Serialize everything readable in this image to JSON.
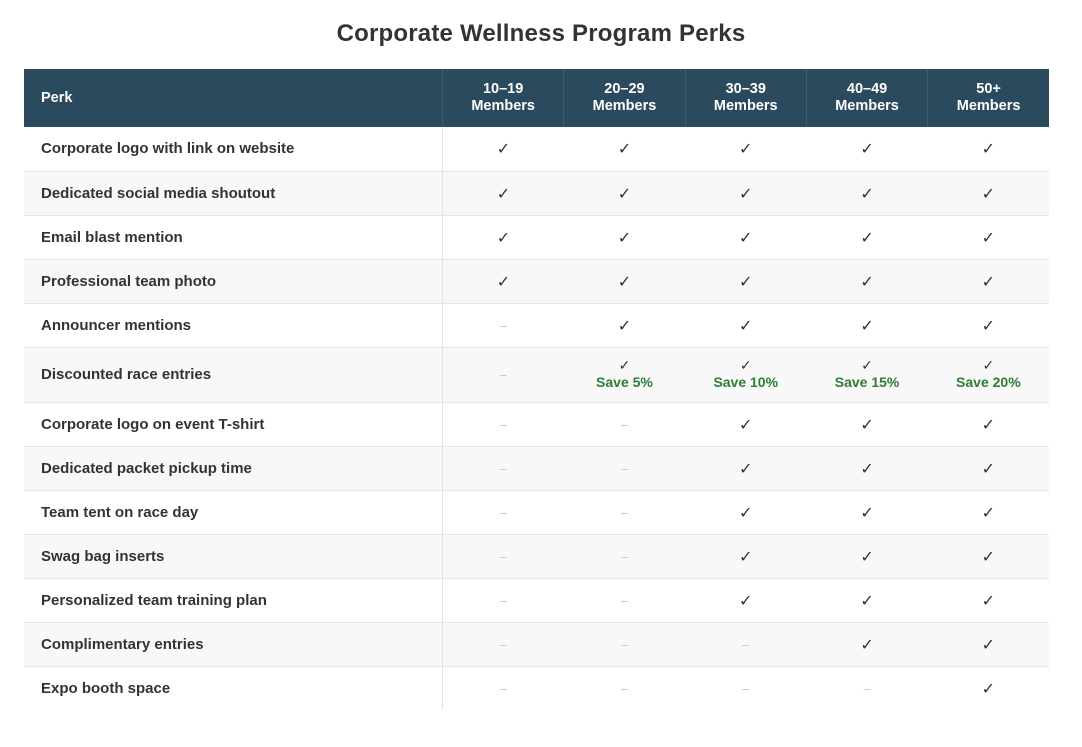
{
  "title": "Corporate Wellness Program Perks",
  "header": {
    "perk_label": "Perk",
    "tiers": [
      {
        "line1": "10–19",
        "line2": "Members"
      },
      {
        "line1": "20–29",
        "line2": "Members"
      },
      {
        "line1": "30–39",
        "line2": "Members"
      },
      {
        "line1": "40–49",
        "line2": "Members"
      },
      {
        "line1": "50+",
        "line2": "Members"
      }
    ]
  },
  "symbols": {
    "check": "✓",
    "dash": "–"
  },
  "colors": {
    "header_bg": "#2b4a5e",
    "save_text": "#2e7d32",
    "dash": "#c8c8c8"
  },
  "rows": [
    {
      "name": "Corporate logo with link on website",
      "cells": [
        {
          "v": "check"
        },
        {
          "v": "check"
        },
        {
          "v": "check"
        },
        {
          "v": "check"
        },
        {
          "v": "check"
        }
      ]
    },
    {
      "name": "Dedicated social media shoutout",
      "cells": [
        {
          "v": "check"
        },
        {
          "v": "check"
        },
        {
          "v": "check"
        },
        {
          "v": "check"
        },
        {
          "v": "check"
        }
      ]
    },
    {
      "name": "Email blast mention",
      "cells": [
        {
          "v": "check"
        },
        {
          "v": "check"
        },
        {
          "v": "check"
        },
        {
          "v": "check"
        },
        {
          "v": "check"
        }
      ]
    },
    {
      "name": "Professional team photo",
      "cells": [
        {
          "v": "check"
        },
        {
          "v": "check"
        },
        {
          "v": "check"
        },
        {
          "v": "check"
        },
        {
          "v": "check"
        }
      ]
    },
    {
      "name": "Announcer mentions",
      "cells": [
        {
          "v": "dash"
        },
        {
          "v": "check"
        },
        {
          "v": "check"
        },
        {
          "v": "check"
        },
        {
          "v": "check"
        }
      ]
    },
    {
      "name": "Discounted race entries",
      "tall": true,
      "cells": [
        {
          "v": "dash"
        },
        {
          "v": "check",
          "note": "Save 5%"
        },
        {
          "v": "check",
          "note": "Save 10%"
        },
        {
          "v": "check",
          "note": "Save 15%"
        },
        {
          "v": "check",
          "note": "Save 20%"
        }
      ]
    },
    {
      "name": "Corporate logo on event T-shirt",
      "cells": [
        {
          "v": "dash"
        },
        {
          "v": "dash"
        },
        {
          "v": "check"
        },
        {
          "v": "check"
        },
        {
          "v": "check"
        }
      ]
    },
    {
      "name": "Dedicated packet pickup time",
      "cells": [
        {
          "v": "dash"
        },
        {
          "v": "dash"
        },
        {
          "v": "check"
        },
        {
          "v": "check"
        },
        {
          "v": "check"
        }
      ]
    },
    {
      "name": "Team tent on race day",
      "cells": [
        {
          "v": "dash"
        },
        {
          "v": "dash"
        },
        {
          "v": "check"
        },
        {
          "v": "check"
        },
        {
          "v": "check"
        }
      ]
    },
    {
      "name": "Swag bag inserts",
      "cells": [
        {
          "v": "dash"
        },
        {
          "v": "dash"
        },
        {
          "v": "check"
        },
        {
          "v": "check"
        },
        {
          "v": "check"
        }
      ]
    },
    {
      "name": "Personalized team training plan",
      "cells": [
        {
          "v": "dash"
        },
        {
          "v": "dash"
        },
        {
          "v": "check"
        },
        {
          "v": "check"
        },
        {
          "v": "check"
        }
      ]
    },
    {
      "name": "Complimentary entries",
      "cells": [
        {
          "v": "dash"
        },
        {
          "v": "dash"
        },
        {
          "v": "dash"
        },
        {
          "v": "check"
        },
        {
          "v": "check"
        }
      ]
    },
    {
      "name": "Expo booth space",
      "cells": [
        {
          "v": "dash"
        },
        {
          "v": "dash"
        },
        {
          "v": "dash"
        },
        {
          "v": "dash"
        },
        {
          "v": "check"
        }
      ]
    }
  ]
}
